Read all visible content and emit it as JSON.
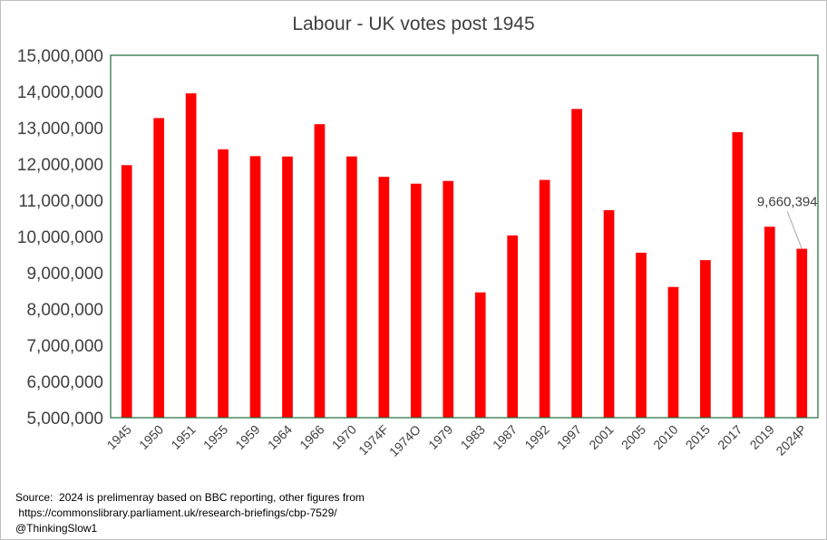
{
  "chart_data": {
    "type": "bar",
    "title": "Labour - UK votes post 1945",
    "categories": [
      "1945",
      "1950",
      "1951",
      "1955",
      "1959",
      "1964",
      "1966",
      "1970",
      "1974F",
      "1974O",
      "1979",
      "1983",
      "1987",
      "1992",
      "1997",
      "2001",
      "2005",
      "2010",
      "2015",
      "2017",
      "2019",
      "2024P"
    ],
    "values": [
      11967746,
      13266176,
      13948883,
      12405254,
      12216172,
      12205808,
      13096629,
      12208758,
      11645616,
      11457079,
      11532218,
      8456934,
      10029807,
      11560484,
      13518167,
      10724953,
      9552436,
      8606517,
      9347273,
      12877918,
      10269051,
      9660394
    ],
    "ylim": [
      5000000,
      15000000
    ],
    "ytick_step": 1000000,
    "y_ticks": [
      "5,000,000",
      "6,000,000",
      "7,000,000",
      "8,000,000",
      "9,000,000",
      "10,000,000",
      "11,000,000",
      "12,000,000",
      "13,000,000",
      "14,000,000",
      "15,000,000"
    ],
    "bar_color": "#ff0000",
    "plot_border_color": "#1f6b3a",
    "grid": false,
    "annotation": {
      "category": "2024P",
      "text": "9,660,394"
    }
  },
  "source_lines": [
    "Source:  2024 is prelimenray based on BBC reporting, other figures from",
    " https://commonslibrary.parliament.uk/research-briefings/cbp-7529/",
    "@ThinkingSlow1"
  ]
}
